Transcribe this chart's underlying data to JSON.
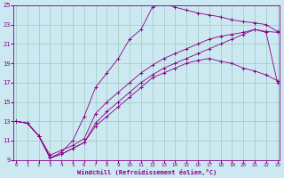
{
  "xlabel": "Windchill (Refroidissement éolien,°C)",
  "background_color": "#cce8f0",
  "grid_color": "#99ccbb",
  "line_color": "#880088",
  "xmin": 0,
  "xmax": 23,
  "ymin": 9,
  "ymax": 25,
  "xticks": [
    0,
    1,
    2,
    3,
    4,
    5,
    6,
    7,
    8,
    9,
    10,
    11,
    12,
    13,
    14,
    15,
    16,
    17,
    18,
    19,
    20,
    21,
    22,
    23
  ],
  "yticks": [
    9,
    11,
    13,
    15,
    17,
    19,
    21,
    23,
    25
  ],
  "line1_x": [
    0,
    1,
    2,
    3,
    4,
    5,
    6,
    7,
    8,
    9,
    10,
    11,
    12,
    13,
    14,
    15,
    16,
    17,
    18,
    19,
    20,
    21,
    22,
    23
  ],
  "line1_y": [
    13.0,
    12.8,
    11.5,
    9.2,
    9.6,
    10.2,
    10.8,
    12.5,
    13.5,
    14.5,
    15.5,
    16.5,
    17.5,
    18.0,
    18.5,
    19.0,
    19.3,
    19.5,
    19.2,
    19.0,
    18.5,
    18.2,
    17.8,
    17.2
  ],
  "line2_x": [
    0,
    1,
    2,
    3,
    4,
    5,
    6,
    7,
    8,
    9,
    10,
    11,
    12,
    13,
    14,
    15,
    16,
    17,
    18,
    19,
    20,
    21,
    22,
    23
  ],
  "line2_y": [
    13.0,
    12.8,
    11.5,
    9.5,
    10.0,
    10.5,
    11.2,
    13.8,
    15.0,
    16.0,
    17.0,
    18.0,
    18.8,
    19.5,
    20.0,
    20.5,
    21.0,
    21.5,
    21.8,
    22.0,
    22.2,
    22.5,
    22.3,
    22.2
  ],
  "line3_x": [
    0,
    1,
    2,
    3,
    4,
    5,
    6,
    7,
    8,
    9,
    10,
    11,
    12,
    13,
    14,
    15,
    16,
    17,
    18,
    19,
    20,
    21,
    22,
    23
  ],
  "line3_y": [
    13.0,
    12.8,
    11.5,
    9.2,
    9.8,
    11.0,
    13.5,
    16.5,
    18.0,
    19.5,
    21.5,
    22.5,
    24.8,
    25.2,
    24.8,
    24.5,
    24.2,
    24.0,
    23.8,
    23.5,
    23.3,
    23.2,
    23.0,
    22.3
  ],
  "line4_x": [
    0,
    1,
    2,
    3,
    4,
    5,
    6,
    7,
    8,
    9,
    10,
    11,
    12,
    13,
    14,
    15,
    16,
    17,
    18,
    19,
    20,
    21,
    22,
    23
  ],
  "line4_y": [
    13.0,
    12.8,
    11.5,
    9.2,
    9.6,
    10.2,
    10.8,
    12.8,
    14.0,
    15.0,
    16.0,
    17.0,
    17.8,
    18.5,
    19.0,
    19.5,
    20.0,
    20.5,
    21.0,
    21.5,
    22.0,
    22.5,
    22.2,
    17.0
  ]
}
